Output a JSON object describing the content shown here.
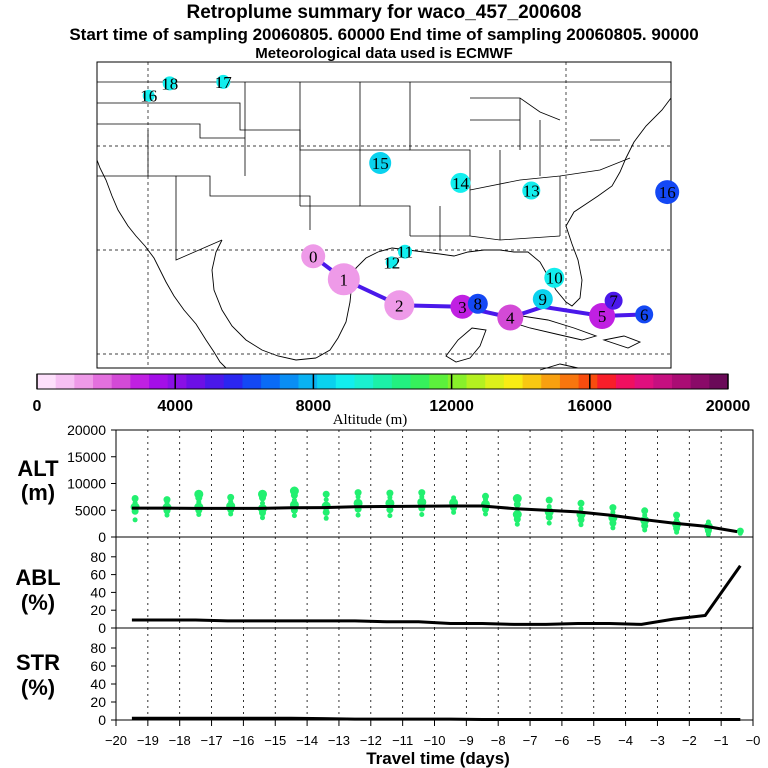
{
  "header": {
    "title": "Retroplume summary for waco_457_200608",
    "sampling": "Start time of sampling 20060805. 60000     End time of sampling 20060805. 90000",
    "met": "Meteorological data used is ECMWF"
  },
  "colorbar": {
    "colors": [
      "#fde0fb",
      "#f6c0f3",
      "#ee9ae8",
      "#e370de",
      "#d34ad6",
      "#c020e2",
      "#a40ee8",
      "#8a10e6",
      "#6c10e6",
      "#4a18ea",
      "#2b26f0",
      "#1448f4",
      "#0a6bf6",
      "#0a8ef4",
      "#0ab2f2",
      "#0ad2ee",
      "#12eeee",
      "#1af0d0",
      "#1cf0a8",
      "#22f080",
      "#36f05c",
      "#5cf03c",
      "#88f02a",
      "#b4f020",
      "#dcf01a",
      "#f8ec14",
      "#f8c812",
      "#f8a010",
      "#f8760e",
      "#f84c0e",
      "#f81e2a",
      "#f01060",
      "#e0107e",
      "#c61080",
      "#aa0c74",
      "#8a0a68",
      "#6a0a58"
    ],
    "tick_labels": [
      "0",
      "4000",
      "8000",
      "12000",
      "16000",
      "20000"
    ],
    "tick_values": [
      0,
      4000,
      8000,
      12000,
      16000,
      20000
    ],
    "label": "Altitude (m)"
  },
  "map_markers": [
    {
      "label": "0",
      "lon": -93.7,
      "lat": 31.3,
      "color": "#ee9ae8",
      "size": 12
    },
    {
      "label": "1",
      "lon": -92.1,
      "lat": 29.8,
      "color": "#ee9ae8",
      "size": 16
    },
    {
      "label": "2",
      "lon": -89.2,
      "lat": 28.1,
      "color": "#ee9ae8",
      "size": 15
    },
    {
      "label": "3",
      "lon": -85.9,
      "lat": 28.0,
      "color": "#c020e2",
      "size": 12
    },
    {
      "label": "4",
      "lon": -83.4,
      "lat": 27.3,
      "color": "#d34ad6",
      "size": 13
    },
    {
      "label": "5",
      "lon": -78.6,
      "lat": 27.4,
      "color": "#c020e2",
      "size": 13
    },
    {
      "label": "6",
      "lon": -76.4,
      "lat": 27.5,
      "color": "#1448f4",
      "size": 9
    },
    {
      "label": "7",
      "lon": -78.0,
      "lat": 28.4,
      "color": "#4a18ea",
      "size": 9
    },
    {
      "label": "8",
      "lon": -85.1,
      "lat": 28.2,
      "color": "#1448f4",
      "size": 10
    },
    {
      "label": "9",
      "lon": -81.7,
      "lat": 28.5,
      "color": "#0ad2ee",
      "size": 10
    },
    {
      "label": "10",
      "lon": -81.1,
      "lat": 29.9,
      "color": "#12eeee",
      "size": 10
    },
    {
      "label": "11",
      "lon": -88.9,
      "lat": 31.6,
      "color": "#12eeee",
      "size": 7
    },
    {
      "label": "12",
      "lon": -89.6,
      "lat": 30.9,
      "color": "#12eeee",
      "size": 6
    },
    {
      "label": "13",
      "lon": -82.3,
      "lat": 35.6,
      "color": "#12eeee",
      "size": 9
    },
    {
      "label": "14",
      "lon": -86.0,
      "lat": 36.1,
      "color": "#12eeee",
      "size": 10
    },
    {
      "label": "15",
      "lon": -90.2,
      "lat": 37.4,
      "color": "#0ad2ee",
      "size": 11
    },
    {
      "label": "16",
      "lon": -102.3,
      "lat": 41.8,
      "color": "#12eeee",
      "size": 6
    },
    {
      "label": "16",
      "lon": -75.2,
      "lat": 35.5,
      "color": "#1448f4",
      "size": 12
    },
    {
      "label": "17",
      "lon": -98.4,
      "lat": 42.7,
      "color": "#12eeee",
      "size": 7
    },
    {
      "label": "18",
      "lon": -101.2,
      "lat": 42.6,
      "color": "#12eeee",
      "size": 7
    }
  ],
  "map_track": {
    "lon": [
      -93.7,
      -92.1,
      -89.2,
      -85.9,
      -83.4,
      -81.7,
      -78.6,
      -76.4
    ],
    "lat": [
      31.3,
      29.8,
      28.1,
      28.0,
      27.3,
      28.0,
      27.4,
      27.5
    ],
    "color": "#4a18ea"
  },
  "chart_data": [
    {
      "type": "scatter",
      "panel": "ALT",
      "ylabel": "ALT\n(m)",
      "ylim": [
        0,
        20000
      ],
      "yticks": [
        "0",
        "5000",
        "10000",
        "15000",
        "20000"
      ],
      "xlim": [
        -20,
        0
      ],
      "mean_line": {
        "x": [
          -19.5,
          -18.5,
          -17.5,
          -16.5,
          -15.5,
          -14.5,
          -13.5,
          -12.5,
          -11.5,
          -10.5,
          -9.5,
          -8.5,
          -7.5,
          -6.5,
          -5.5,
          -4.5,
          -3.5,
          -2.5,
          -1.5,
          -0.5
        ],
        "y": [
          5400,
          5400,
          5350,
          5350,
          5350,
          5450,
          5500,
          5650,
          5700,
          5750,
          5800,
          5800,
          5300,
          5000,
          4700,
          4100,
          3300,
          2600,
          2000,
          1000
        ]
      },
      "points": [
        {
          "x": -19.4,
          "y": [
            3200,
            4800,
            5600,
            6400,
            7200
          ]
        },
        {
          "x": -18.4,
          "y": [
            4100,
            4900,
            5500,
            6400,
            7000
          ]
        },
        {
          "x": -17.4,
          "y": [
            4200,
            5000,
            5600,
            6500,
            7300,
            8000
          ]
        },
        {
          "x": -16.4,
          "y": [
            4300,
            5100,
            5800,
            6600,
            7400
          ]
        },
        {
          "x": -15.4,
          "y": [
            3600,
            4500,
            5300,
            6300,
            7300,
            8000
          ]
        },
        {
          "x": -14.4,
          "y": [
            4000,
            5000,
            6000,
            6900,
            7800,
            8600
          ]
        },
        {
          "x": -13.4,
          "y": [
            3500,
            4600,
            5800,
            7000,
            8000
          ]
        },
        {
          "x": -12.4,
          "y": [
            4100,
            5200,
            6300,
            7500,
            8300
          ]
        },
        {
          "x": -11.4,
          "y": [
            4000,
            5100,
            6300,
            7400,
            8200
          ]
        },
        {
          "x": -10.4,
          "y": [
            4200,
            5400,
            6500,
            7500,
            8300
          ]
        },
        {
          "x": -9.4,
          "y": [
            4600,
            5500,
            6400,
            7300
          ]
        },
        {
          "x": -8.4,
          "y": [
            4300,
            5200,
            6100,
            7000,
            7600
          ]
        },
        {
          "x": -7.4,
          "y": [
            2400,
            3300,
            4200,
            5300,
            6100,
            7200
          ]
        },
        {
          "x": -6.4,
          "y": [
            2600,
            3700,
            4700,
            5700,
            6900
          ]
        },
        {
          "x": -5.4,
          "y": [
            2300,
            3200,
            4200,
            5300,
            6300
          ]
        },
        {
          "x": -4.4,
          "y": [
            1700,
            2600,
            3600,
            4600,
            5500
          ]
        },
        {
          "x": -3.4,
          "y": [
            1300,
            2100,
            3100,
            4100,
            4900
          ]
        },
        {
          "x": -2.4,
          "y": [
            900,
            1600,
            2400,
            3200,
            4100
          ]
        },
        {
          "x": -1.4,
          "y": [
            500,
            1200,
            1900,
            2800
          ]
        },
        {
          "x": -0.4,
          "y": [
            700,
            1100
          ]
        }
      ]
    },
    {
      "type": "line",
      "panel": "ABL",
      "ylabel": "ABL\n(%)",
      "ylim": [
        0,
        100
      ],
      "yticks": [
        "0",
        "20",
        "40",
        "60",
        "80"
      ],
      "xlim": [
        -20,
        0
      ],
      "x": [
        -19.5,
        -18.5,
        -17.5,
        -16.5,
        -15.5,
        -14.5,
        -13.5,
        -12.5,
        -11.5,
        -10.5,
        -9.5,
        -8.5,
        -7.5,
        -6.5,
        -5.5,
        -4.5,
        -3.5,
        -2.5,
        -1.5,
        -0.4
      ],
      "y": [
        9,
        9,
        9,
        8,
        8,
        8,
        8,
        8,
        7,
        7,
        5,
        5,
        4,
        4,
        5,
        5,
        4,
        10,
        14,
        70
      ]
    },
    {
      "type": "line",
      "panel": "STR",
      "ylabel": "STR\n(%)",
      "ylim": [
        0,
        100
      ],
      "yticks": [
        "0",
        "20",
        "40",
        "60",
        "80"
      ],
      "xlim": [
        -20,
        0
      ],
      "xlabel": "Travel time (days)",
      "xticks": [
        "−20",
        "−19",
        "−18",
        "−17",
        "−16",
        "−15",
        "−14",
        "−13",
        "−12",
        "−11",
        "−10",
        "−9",
        "−8",
        "−7",
        "−6",
        "−5",
        "−4",
        "−3",
        "−2",
        "−1",
        "−0"
      ],
      "x": [
        -19.5,
        -18.5,
        -17.5,
        -16.5,
        -15.5,
        -14.5,
        -13.5,
        -12.5,
        -11.5,
        -10.5,
        -9.5,
        -8.5,
        -7.5,
        -6.5,
        -5.5,
        -4.5,
        -3.5,
        -2.5,
        -1.5,
        -0.4
      ],
      "y": [
        2,
        2,
        2,
        2,
        2,
        2,
        1.5,
        1,
        1,
        1,
        1,
        0.5,
        0.5,
        0.5,
        0.5,
        0.5,
        0.5,
        0.5,
        0.5,
        0.5
      ]
    }
  ]
}
